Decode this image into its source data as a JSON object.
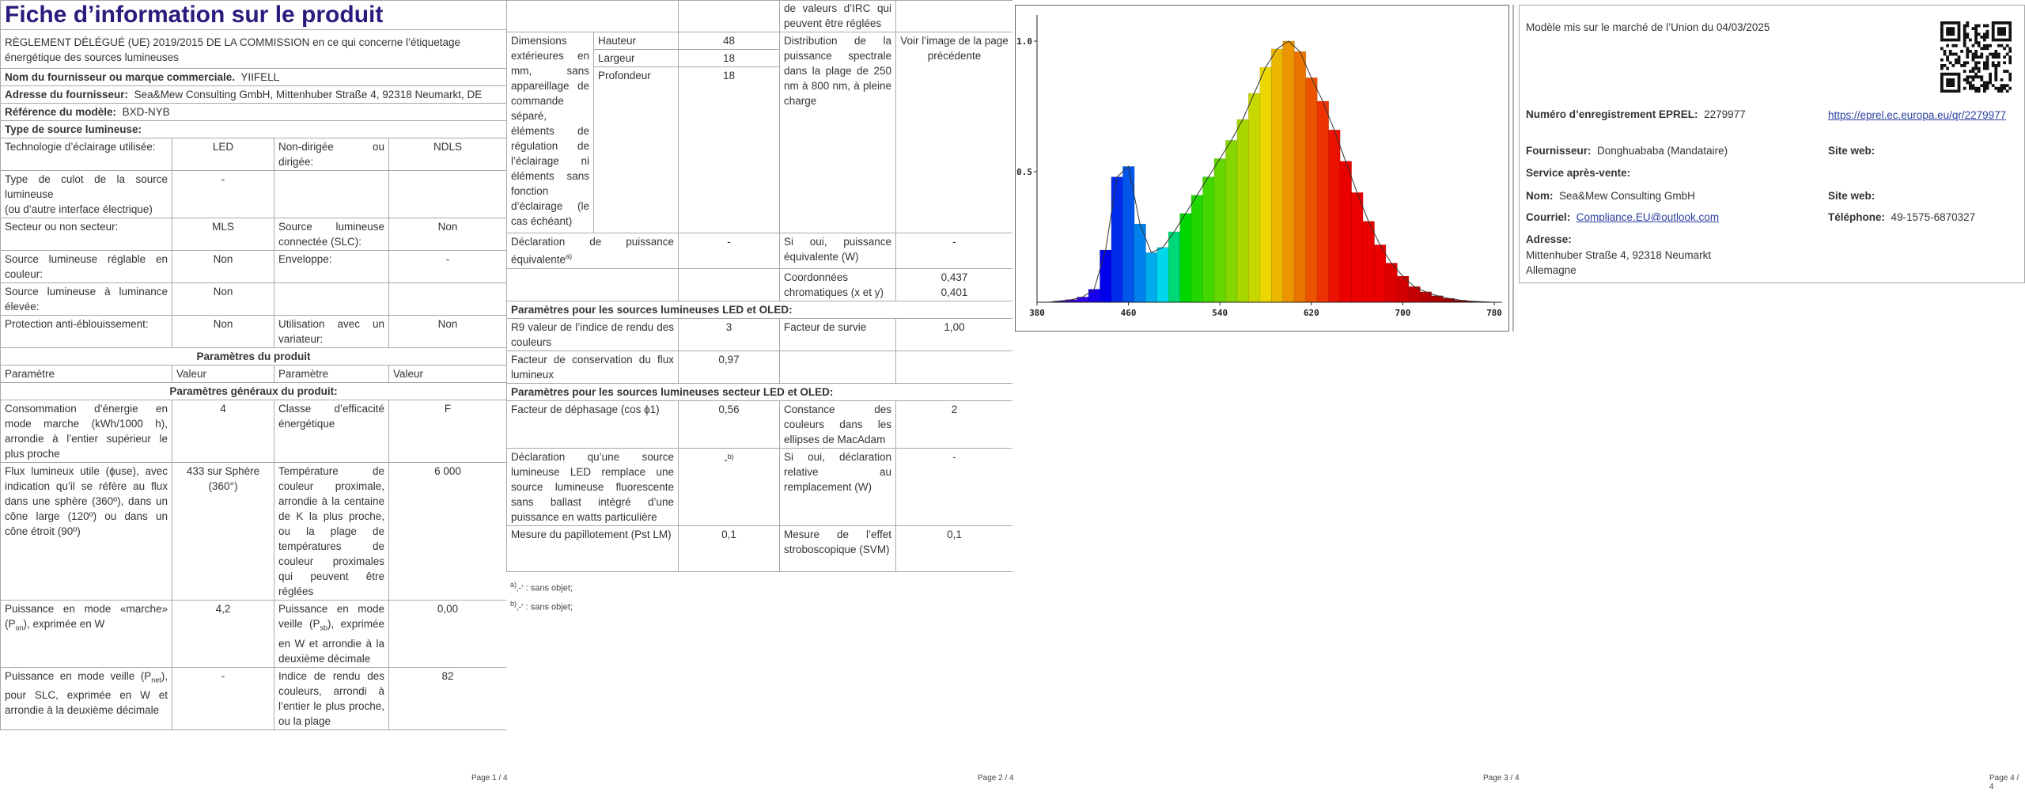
{
  "page1": {
    "title": "Fiche d’information sur le produit",
    "regulation": "RÈGLEMENT DÉLÉGUÉ (UE) 2019/2015 DE LA COMMISSION en ce qui concerne l’étiquetage énergétique des sources lumineuses",
    "supplier": {
      "label": "Nom du fournisseur ou marque commerciale.",
      "value": "YIIFELL"
    },
    "address": {
      "label": "Adresse du fournisseur:",
      "value": "Sea&Mew Consulting GmbH, Mittenhuber Straße 4, 92318 Neumarkt, DE"
    },
    "model": {
      "label": "Référence du modèle:",
      "value": "BXD-NYB"
    },
    "source_type": {
      "title": "Type de source lumineuse:",
      "rows": [
        [
          "Technologie d’éclairage utilisée:",
          "LED",
          "Non-dirigée ou dirigée:",
          "NDLS"
        ],
        [
          [
            "Type de culot de la source lumineuse",
            "(ou d’autre interface électrique)"
          ],
          "-"
        ],
        [
          "Secteur ou non secteur:",
          "MLS",
          "Source lumineuse connectée (SLC):",
          "Non"
        ],
        [
          "Source lumineuse réglable en couleur:",
          "Non",
          "Enveloppe:",
          "-"
        ],
        [
          "Source lumineuse à luminance élevée:",
          "Non"
        ],
        [
          "Protection anti-éblouissement:",
          "Non",
          "Utilisation avec un variateur:",
          "Non"
        ]
      ]
    },
    "params": {
      "title": "Paramètres du produit",
      "header": [
        "Paramètre",
        "Valeur",
        "Paramètre",
        "Valeur"
      ],
      "general_title": "Paramètres généraux du produit:",
      "rows": [
        [
          "Consommation d’énergie en mode marche (kWh/1000 h), arrondie à l’entier supérieur le plus proche",
          "4",
          "Classe d’efficacité énergétique",
          "F"
        ],
        [
          "Flux lumineux utile (ϕuse), avec indication qu’il se réfère au flux dans une sphère (360º), dans un cône large (120º) ou dans un cône étroit (90º)",
          "433 sur Sphère (360°)",
          "Température de couleur proximale, arrondie à la centaine de K la plus proche, ou la plage de températures de couleur proximales qui peuvent être réglées",
          "6 000"
        ],
        [
          [
            "Puissance en mode «marche» (P",
            "on",
            "), exprimée en W"
          ],
          "4,2",
          [
            "Puissance en mode veille (P",
            "sb",
            "), exprimée en W et arrondie à la deuxième décimale"
          ],
          "0,00"
        ],
        [
          [
            "Puissance en mode veille (P",
            "net",
            "), pour SLC, exprimée en W et arrondie à la deuxième décimale"
          ],
          "-",
          "Indice de rendu des couleurs, arrondi à l’entier le plus proche, ou la plage",
          "82"
        ]
      ]
    }
  },
  "page2": {
    "cri_continued": "de valeurs d’IRC qui peuvent être réglées",
    "dimensions": {
      "label": "Dimensions extérieures en mm, sans appareillage de commande séparé, éléments de régulation de l’éclairage ni éléments sans fonction d’éclairage (le cas échéant)",
      "items": [
        [
          "Hauteur",
          "48"
        ],
        [
          "Largeur",
          "18"
        ],
        [
          "Profondeur",
          "18"
        ]
      ],
      "spd_label": "Distribution de la puissance spectrale dans la plage de 250 nm à 800 nm, à pleine charge",
      "spd_value": "Voir l’image de la page précédente"
    },
    "equivalent": [
      "Déclaration de puissance équivalente",
      "-",
      "Si oui, puissance équivalente (W)",
      "-"
    ],
    "equivalent_note": "a)",
    "chroma": {
      "label": "Coordonnées chromatiques (x et y)",
      "values": [
        "0,437",
        "0,401"
      ]
    },
    "led_title": "Paramètres pour les sources lumineuses LED et OLED:",
    "led_rows": [
      [
        "R9 valeur de l’indice de rendu des couleurs",
        "3",
        "Facteur de survie",
        "1,00"
      ],
      [
        "Facteur de conservation du flux lumineux",
        "0,97"
      ]
    ],
    "mains_title": "Paramètres pour les sources lumineuses secteur LED et OLED:",
    "mains_rows": [
      [
        "Facteur de déphasage (cos ϕ1)",
        "0,56",
        "Constance des couleurs dans les ellipses de MacAdam",
        "2"
      ],
      [
        "Déclaration qu’une source lumineuse LED remplace une source lumineuse fluorescente sans ballast intégré d’une puissance en watts particulière",
        "-",
        "Si oui, déclaration relative au remplacement (W)",
        "-"
      ],
      [
        "Mesure du papillotement (Pst LM)",
        "0,1",
        "Mesure de l’effet stroboscopique (SVM)",
        "0,1"
      ]
    ],
    "replacement_note": "b)",
    "footnotes": [
      {
        "mark": "a)",
        "text": "‚-‘ : sans objet;"
      },
      {
        "mark": "b)",
        "text": "‚-‘ : sans objet;"
      }
    ]
  },
  "page3": {
    "spectrum": {
      "type": "area",
      "x": [
        380,
        390,
        400,
        410,
        420,
        430,
        440,
        450,
        460,
        470,
        480,
        490,
        500,
        510,
        520,
        530,
        540,
        550,
        560,
        570,
        580,
        590,
        600,
        610,
        620,
        630,
        640,
        650,
        660,
        670,
        680,
        690,
        700,
        710,
        720,
        730,
        740,
        750,
        760,
        770,
        780
      ],
      "values": [
        0,
        0,
        0.005,
        0.01,
        0.02,
        0.05,
        0.2,
        0.48,
        0.52,
        0.3,
        0.19,
        0.21,
        0.27,
        0.34,
        0.41,
        0.48,
        0.55,
        0.62,
        0.7,
        0.8,
        0.9,
        0.97,
        1.0,
        0.96,
        0.86,
        0.77,
        0.66,
        0.54,
        0.42,
        0.31,
        0.22,
        0.15,
        0.1,
        0.06,
        0.04,
        0.025,
        0.015,
        0.008,
        0.004,
        0.002,
        0
      ],
      "xlim": [
        380,
        780
      ],
      "ylim": [
        0,
        1.1
      ],
      "xticks": [
        380,
        460,
        540,
        620,
        700,
        780
      ],
      "yticks": [
        0.5,
        {
          "value": 1,
          "label": "1.0"
        }
      ]
    }
  },
  "page4": {
    "market_date": "Modèle mis sur le marché de l’Union du 04/03/2025",
    "eprel_label": "Numéro d’enregistrement EPREL:",
    "eprel_value": "2279977",
    "eprel_link": "https://eprel.ec.europa.eu/qr/2279977",
    "supplier_label": "Fournisseur:",
    "supplier_value": "Donghuababa (Mandataire)",
    "website_label_1": "Site web:",
    "service_title": "Service après-vente:",
    "name_label": "Nom:",
    "name_value": "Sea&Mew Consulting GmbH",
    "website_label_2": "Site web:",
    "email_label": "Courriel:",
    "email_value": "Compliance.EU@outlook.com",
    "phone_label": "Téléphone:",
    "phone_value": "49-1575-6870327",
    "address_label": "Adresse:",
    "address_lines": [
      "Mittenhuber Straße 4, 92318 Neumarkt",
      "Allemagne"
    ]
  },
  "footers": [
    "Page 1 / 4",
    "Page 2 / 4",
    "Page 3 / 4",
    "Page 4 / 4"
  ]
}
